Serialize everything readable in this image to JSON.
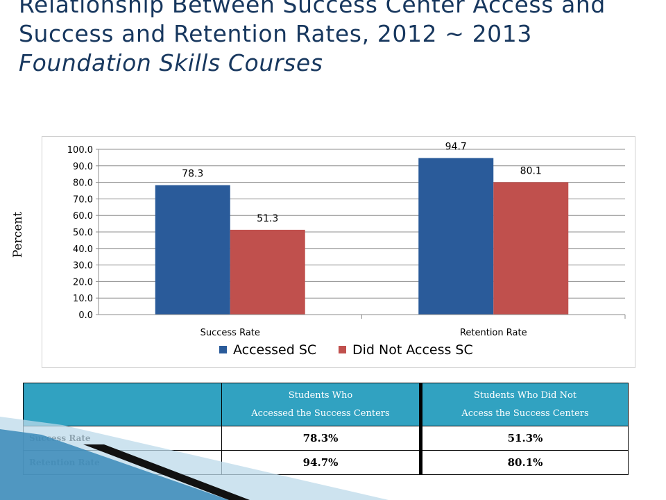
{
  "slide": {
    "title_line1": "Relationship Between Success Center Access and",
    "title_line2": "Success and Retention Rates, 2012 ~ 2013",
    "title_line3": "Foundation Skills Courses"
  },
  "chart_data": {
    "type": "bar",
    "categories": [
      "Success Rate",
      "Retention Rate"
    ],
    "series": [
      {
        "name": "Accessed SC",
        "values": [
          78.3,
          94.7
        ],
        "color": "#2a5b9a"
      },
      {
        "name": "Did Not Access SC",
        "values": [
          51.3,
          80.1
        ],
        "color": "#c0504d"
      }
    ],
    "ylabel": "Percent",
    "ylim": [
      0,
      100
    ],
    "yticks": [
      "0.0",
      "10.0",
      "20.0",
      "30.0",
      "40.0",
      "50.0",
      "60.0",
      "70.0",
      "80.0",
      "90.0",
      "100.0"
    ],
    "grid": true,
    "legend_position": "bottom"
  },
  "table": {
    "header_col1": "",
    "header_col2_line1": "Students Who",
    "header_col2_line2": "Accessed the Success Centers",
    "header_col3_line1": "Students Who Did Not",
    "header_col3_line2": "Access the Success Centers",
    "rows": [
      {
        "label": "Success Rate",
        "accessed": "78.3%",
        "not_accessed": "51.3%"
      },
      {
        "label": "Retention Rate",
        "accessed": "94.7%",
        "not_accessed": "80.1%"
      }
    ]
  },
  "colors": {
    "title": "#17375e",
    "header_fill": "#31a2c1",
    "decor_light": "#bcd9ea",
    "decor_mid": "#3a8ab8"
  }
}
